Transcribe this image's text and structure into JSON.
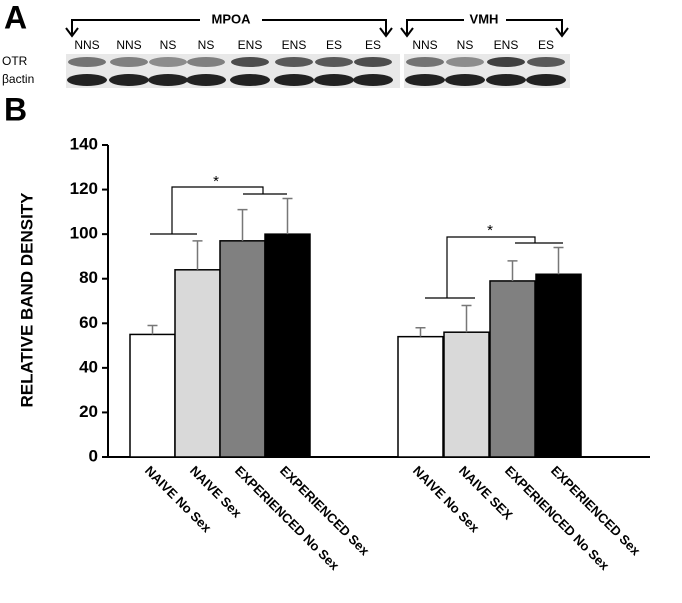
{
  "panel_a": {
    "label": "A",
    "regions": [
      {
        "name": "MPOA",
        "lanes": [
          "NNS",
          "NNS",
          "NS",
          "NS",
          "ENS",
          "ENS",
          "ES",
          "ES"
        ]
      },
      {
        "name": "VMH",
        "lanes": [
          "NNS",
          "NS",
          "ENS",
          "ES"
        ]
      }
    ],
    "rows": [
      "OTR",
      "βactin"
    ]
  },
  "panel_b": {
    "label": "B"
  },
  "chart_data": {
    "type": "bar",
    "y_label": "RELATIVE  BAND  DENSITY",
    "categories": [
      "NAIVE No Sex",
      "NAIVE Sex",
      "EXPERIENCED No Sex",
      "EXPERIENCED Sex",
      "NAIVE No Sex",
      "NAIVE SEX",
      "EXPERIENCED No Sex",
      "EXPERIENCED Sex"
    ],
    "values": [
      55,
      84,
      97,
      100,
      54,
      56,
      79,
      82
    ],
    "errors": [
      4,
      13,
      14,
      16,
      4,
      12,
      9,
      12
    ],
    "colors": [
      "#ffffff",
      "#d9d9d9",
      "#808080",
      "#000000",
      "#ffffff",
      "#d9d9d9",
      "#808080",
      "#000000"
    ],
    "ylim": [
      0,
      140
    ],
    "yticks": [
      0,
      20,
      40,
      60,
      80,
      100,
      120,
      140
    ],
    "annotations": [
      "*",
      "*"
    ]
  }
}
